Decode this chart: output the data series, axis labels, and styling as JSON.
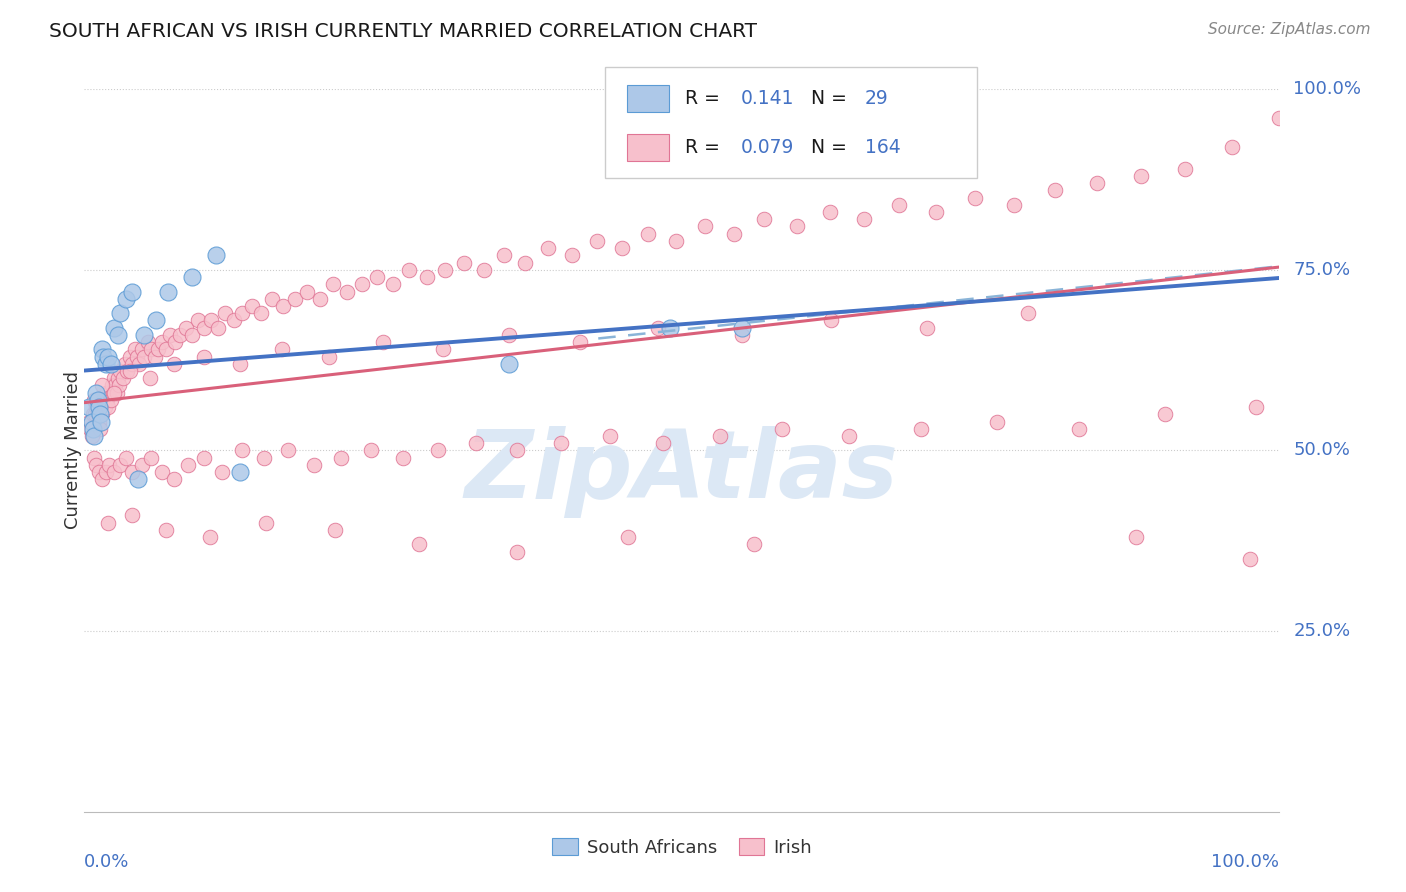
{
  "title": "SOUTH AFRICAN VS IRISH CURRENTLY MARRIED CORRELATION CHART",
  "source": "Source: ZipAtlas.com",
  "ylabel": "Currently Married",
  "r_sa": 0.141,
  "n_sa": 29,
  "r_irish": 0.079,
  "n_irish": 164,
  "ytick_labels": [
    "100.0%",
    "75.0%",
    "50.0%",
    "25.0%"
  ],
  "ytick_values": [
    1.0,
    0.75,
    0.5,
    0.25
  ],
  "background_color": "#ffffff",
  "blue_fill": "#adc8e8",
  "pink_fill": "#f7c0cc",
  "blue_edge": "#5b9bd5",
  "pink_edge": "#e07595",
  "blue_line": "#4472c4",
  "pink_line": "#d9607a",
  "dashed_line": "#8ab4d8",
  "axis_label_color": "#4472c4",
  "black_text": "#1a1a1a",
  "source_color": "#888888",
  "watermark_color": "#dce8f5",
  "sa_x": [
    0.004,
    0.006,
    0.007,
    0.008,
    0.01,
    0.011,
    0.012,
    0.013,
    0.014,
    0.015,
    0.016,
    0.018,
    0.02,
    0.022,
    0.025,
    0.028,
    0.03,
    0.035,
    0.04,
    0.045,
    0.05,
    0.06,
    0.07,
    0.09,
    0.11,
    0.13,
    0.355,
    0.49,
    0.55
  ],
  "sa_y": [
    0.56,
    0.54,
    0.53,
    0.52,
    0.58,
    0.57,
    0.56,
    0.55,
    0.54,
    0.64,
    0.63,
    0.62,
    0.63,
    0.62,
    0.67,
    0.66,
    0.69,
    0.71,
    0.72,
    0.46,
    0.66,
    0.68,
    0.72,
    0.74,
    0.77,
    0.47,
    0.62,
    0.67,
    0.67
  ],
  "irish_x": [
    0.004,
    0.005,
    0.006,
    0.007,
    0.008,
    0.009,
    0.01,
    0.011,
    0.012,
    0.013,
    0.014,
    0.015,
    0.016,
    0.017,
    0.018,
    0.019,
    0.02,
    0.021,
    0.022,
    0.023,
    0.024,
    0.025,
    0.026,
    0.027,
    0.028,
    0.029,
    0.03,
    0.032,
    0.034,
    0.036,
    0.038,
    0.04,
    0.042,
    0.044,
    0.046,
    0.048,
    0.05,
    0.053,
    0.056,
    0.059,
    0.062,
    0.065,
    0.068,
    0.072,
    0.076,
    0.08,
    0.085,
    0.09,
    0.095,
    0.1,
    0.106,
    0.112,
    0.118,
    0.125,
    0.132,
    0.14,
    0.148,
    0.157,
    0.166,
    0.176,
    0.186,
    0.197,
    0.208,
    0.22,
    0.232,
    0.245,
    0.258,
    0.272,
    0.287,
    0.302,
    0.318,
    0.334,
    0.351,
    0.369,
    0.388,
    0.408,
    0.429,
    0.45,
    0.472,
    0.495,
    0.519,
    0.544,
    0.569,
    0.596,
    0.624,
    0.652,
    0.682,
    0.713,
    0.745,
    0.778,
    0.812,
    0.847,
    0.884,
    0.921,
    0.96,
    1.0,
    0.008,
    0.01,
    0.012,
    0.015,
    0.018,
    0.021,
    0.025,
    0.03,
    0.035,
    0.04,
    0.048,
    0.056,
    0.065,
    0.075,
    0.087,
    0.1,
    0.115,
    0.132,
    0.15,
    0.17,
    0.192,
    0.215,
    0.24,
    0.267,
    0.296,
    0.328,
    0.362,
    0.399,
    0.44,
    0.484,
    0.532,
    0.584,
    0.64,
    0.7,
    0.764,
    0.832,
    0.904,
    0.98,
    0.015,
    0.025,
    0.038,
    0.055,
    0.075,
    0.1,
    0.13,
    0.165,
    0.205,
    0.25,
    0.3,
    0.355,
    0.415,
    0.48,
    0.55,
    0.625,
    0.705,
    0.79,
    0.88,
    0.975,
    0.02,
    0.04,
    0.068,
    0.105,
    0.152,
    0.21,
    0.28,
    0.362,
    0.455,
    0.56
  ],
  "irish_y": [
    0.54,
    0.53,
    0.52,
    0.55,
    0.57,
    0.55,
    0.56,
    0.55,
    0.54,
    0.53,
    0.56,
    0.55,
    0.57,
    0.56,
    0.58,
    0.57,
    0.56,
    0.58,
    0.57,
    0.59,
    0.58,
    0.6,
    0.59,
    0.58,
    0.6,
    0.59,
    0.61,
    0.6,
    0.62,
    0.61,
    0.63,
    0.62,
    0.64,
    0.63,
    0.62,
    0.64,
    0.63,
    0.65,
    0.64,
    0.63,
    0.64,
    0.65,
    0.64,
    0.66,
    0.65,
    0.66,
    0.67,
    0.66,
    0.68,
    0.67,
    0.68,
    0.67,
    0.69,
    0.68,
    0.69,
    0.7,
    0.69,
    0.71,
    0.7,
    0.71,
    0.72,
    0.71,
    0.73,
    0.72,
    0.73,
    0.74,
    0.73,
    0.75,
    0.74,
    0.75,
    0.76,
    0.75,
    0.77,
    0.76,
    0.78,
    0.77,
    0.79,
    0.78,
    0.8,
    0.79,
    0.81,
    0.8,
    0.82,
    0.81,
    0.83,
    0.82,
    0.84,
    0.83,
    0.85,
    0.84,
    0.86,
    0.87,
    0.88,
    0.89,
    0.92,
    0.96,
    0.49,
    0.48,
    0.47,
    0.46,
    0.47,
    0.48,
    0.47,
    0.48,
    0.49,
    0.47,
    0.48,
    0.49,
    0.47,
    0.46,
    0.48,
    0.49,
    0.47,
    0.5,
    0.49,
    0.5,
    0.48,
    0.49,
    0.5,
    0.49,
    0.5,
    0.51,
    0.5,
    0.51,
    0.52,
    0.51,
    0.52,
    0.53,
    0.52,
    0.53,
    0.54,
    0.53,
    0.55,
    0.56,
    0.59,
    0.58,
    0.61,
    0.6,
    0.62,
    0.63,
    0.62,
    0.64,
    0.63,
    0.65,
    0.64,
    0.66,
    0.65,
    0.67,
    0.66,
    0.68,
    0.67,
    0.69,
    0.38,
    0.35,
    0.4,
    0.41,
    0.39,
    0.38,
    0.4,
    0.39,
    0.37,
    0.36,
    0.38,
    0.37
  ]
}
